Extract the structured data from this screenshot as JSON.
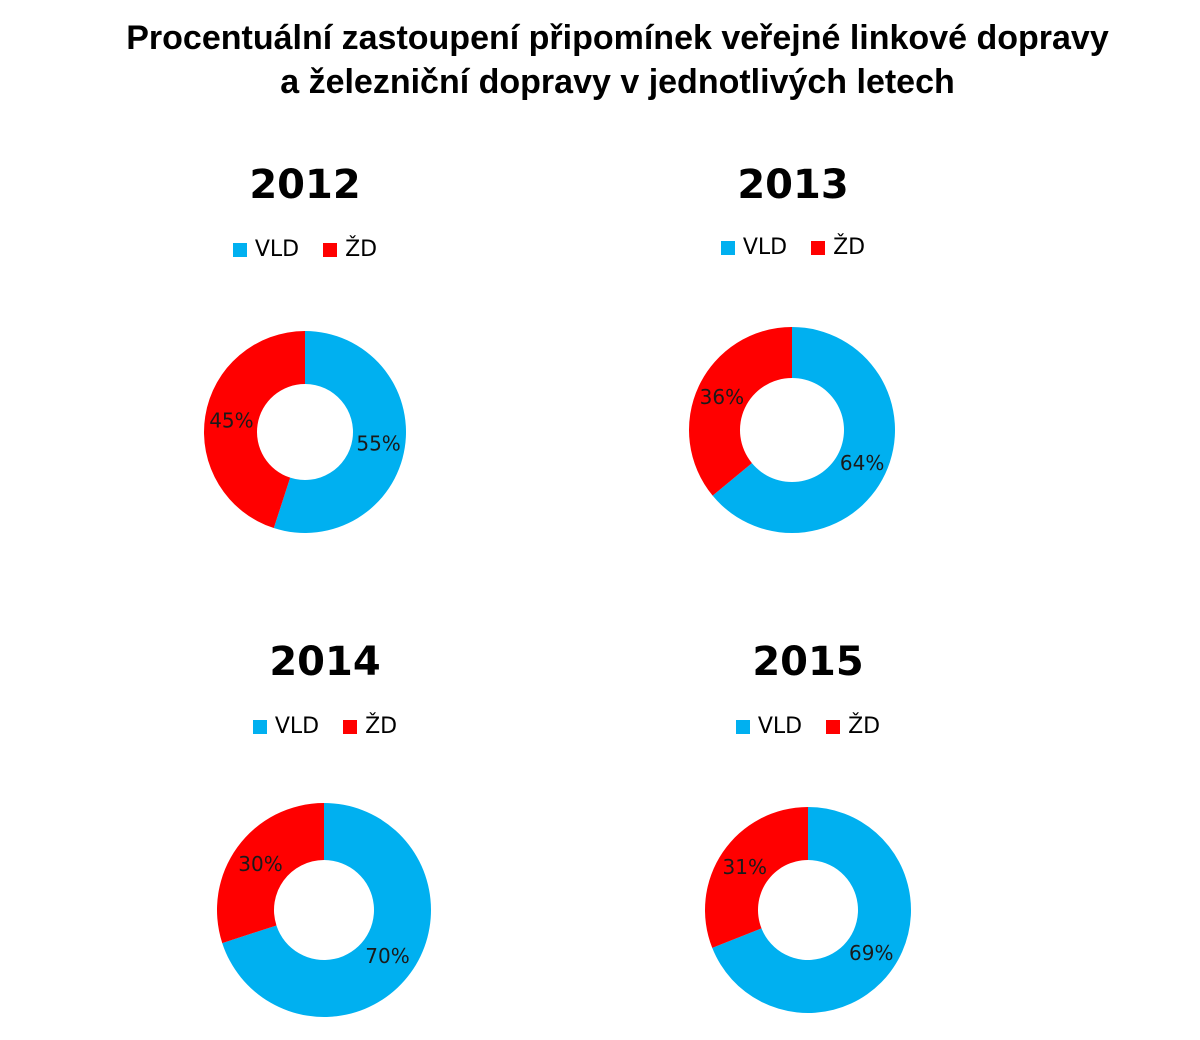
{
  "title_line1": "Procentuální zastoupení připomínek veřejné linkové dopravy",
  "title_line2": "a železniční dopravy v jednotlivých letech",
  "colors": {
    "VLD": "#00b0f0",
    "ZD": "#ff0000"
  },
  "chart_data": [
    {
      "type": "pie",
      "title": "2012",
      "legend": [
        "VLD",
        "ŽD"
      ],
      "series": [
        {
          "name": "VLD",
          "value": 55,
          "label": "55%"
        },
        {
          "name": "ŽD",
          "value": 45,
          "label": "45%"
        }
      ]
    },
    {
      "type": "pie",
      "title": "2013",
      "legend": [
        "VLD",
        "ŽD"
      ],
      "series": [
        {
          "name": "VLD",
          "value": 64,
          "label": "64%"
        },
        {
          "name": "ŽD",
          "value": 36,
          "label": "36%"
        }
      ]
    },
    {
      "type": "pie",
      "title": "2014",
      "legend": [
        "VLD",
        "ŽD"
      ],
      "series": [
        {
          "name": "VLD",
          "value": 70,
          "label": "70%"
        },
        {
          "name": "ŽD",
          "value": 30,
          "label": "30%"
        }
      ]
    },
    {
      "type": "pie",
      "title": "2015",
      "legend": [
        "VLD",
        "ŽD"
      ],
      "series": [
        {
          "name": "VLD",
          "value": 69,
          "label": "69%"
        },
        {
          "name": "ŽD",
          "value": 31,
          "label": "31%"
        }
      ]
    }
  ]
}
